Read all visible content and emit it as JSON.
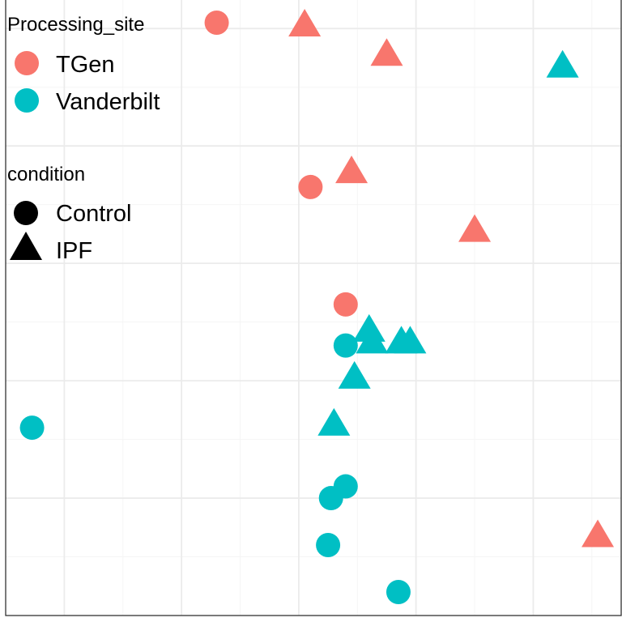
{
  "colors": {
    "TGen": "#F8766D",
    "Vanderbilt": "#00BFC4",
    "panel_border": "#333333",
    "grid_major": "#EBEBEB",
    "grid_minor": "#F5F5F5",
    "background": "#FFFFFF"
  },
  "legend": {
    "site_title": "Processing_site",
    "site_items": [
      {
        "label": "TGen",
        "color": "#F8766D"
      },
      {
        "label": "Vanderbilt",
        "color": "#00BFC4"
      }
    ],
    "condition_title": "condition",
    "condition_items": [
      {
        "label": "Control",
        "shape": "circle-icon"
      },
      {
        "label": "IPF",
        "shape": "triangle-icon"
      }
    ]
  },
  "chart_data": {
    "type": "scatter",
    "title": "",
    "xlabel": "",
    "ylabel": "",
    "axis_text_shown": false,
    "grid": true,
    "legend_position": "top-left",
    "xlim": [
      0,
      10.5
    ],
    "ylim": [
      0,
      10.5
    ],
    "x_major": [
      1,
      3,
      5,
      7,
      9
    ],
    "y_major": [
      2,
      4,
      6,
      8,
      10
    ],
    "points": [
      {
        "x": 3.6,
        "y": 10.1,
        "site": "TGen",
        "condition": "Control"
      },
      {
        "x": 5.1,
        "y": 10.1,
        "site": "TGen",
        "condition": "IPF"
      },
      {
        "x": 6.5,
        "y": 9.6,
        "site": "TGen",
        "condition": "IPF"
      },
      {
        "x": 9.5,
        "y": 9.4,
        "site": "Vanderbilt",
        "condition": "IPF"
      },
      {
        "x": 5.9,
        "y": 7.6,
        "site": "TGen",
        "condition": "IPF"
      },
      {
        "x": 5.2,
        "y": 7.3,
        "site": "TGen",
        "condition": "Control"
      },
      {
        "x": 8.0,
        "y": 6.6,
        "site": "TGen",
        "condition": "IPF"
      },
      {
        "x": 5.8,
        "y": 5.3,
        "site": "TGen",
        "condition": "Control"
      },
      {
        "x": 6.2,
        "y": 4.9,
        "site": "Vanderbilt",
        "condition": "IPF"
      },
      {
        "x": 6.25,
        "y": 4.7,
        "site": "Vanderbilt",
        "condition": "IPF"
      },
      {
        "x": 5.8,
        "y": 4.6,
        "site": "Vanderbilt",
        "condition": "Control"
      },
      {
        "x": 6.75,
        "y": 4.7,
        "site": "Vanderbilt",
        "condition": "IPF"
      },
      {
        "x": 6.9,
        "y": 4.7,
        "site": "Vanderbilt",
        "condition": "IPF"
      },
      {
        "x": 5.95,
        "y": 4.1,
        "site": "Vanderbilt",
        "condition": "IPF"
      },
      {
        "x": 0.45,
        "y": 3.2,
        "site": "Vanderbilt",
        "condition": "Control"
      },
      {
        "x": 5.6,
        "y": 3.3,
        "site": "Vanderbilt",
        "condition": "IPF"
      },
      {
        "x": 5.8,
        "y": 2.2,
        "site": "Vanderbilt",
        "condition": "Control"
      },
      {
        "x": 5.55,
        "y": 2.0,
        "site": "Vanderbilt",
        "condition": "Control"
      },
      {
        "x": 10.1,
        "y": 1.4,
        "site": "TGen",
        "condition": "IPF"
      },
      {
        "x": 5.5,
        "y": 1.2,
        "site": "Vanderbilt",
        "condition": "Control"
      },
      {
        "x": 6.7,
        "y": 0.4,
        "site": "Vanderbilt",
        "condition": "Control"
      }
    ]
  }
}
